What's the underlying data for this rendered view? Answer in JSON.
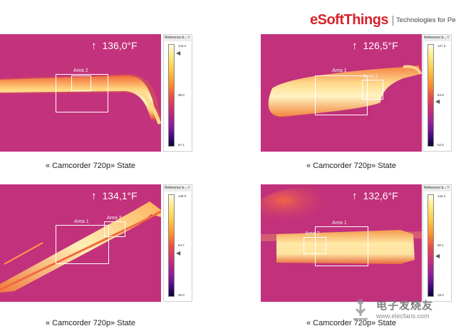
{
  "brand": {
    "name": "eSoftThings",
    "tagline": "Technologies for People",
    "color": "#d8232a"
  },
  "panels": [
    {
      "temperature": "136,0°F",
      "areas": [
        "Area 2"
      ],
      "scale": {
        "title": "Reference b...",
        "max": "142.2",
        "mid": "98.0",
        "min": "57.1"
      },
      "caption": "« Camcorder 720p» State"
    },
    {
      "temperature": "126,5°F",
      "areas": [
        "Area 1",
        "Area 2"
      ],
      "scale": {
        "title": "Reference b...",
        "max": "127.3",
        "mid": "84.9",
        "min": "52.5"
      },
      "caption": "« Camcorder 720p» State"
    },
    {
      "temperature": "134,1°F",
      "areas": [
        "Area 1",
        "Area 2"
      ],
      "scale": {
        "title": "Reference b...",
        "max": "139.0",
        "mid": "84.7",
        "min": "30.0"
      },
      "caption": "« Camcorder 720p» State"
    },
    {
      "temperature": "132,6°F",
      "areas": [
        "Area 1",
        "Area 2"
      ],
      "scale": {
        "title": "Reference b...",
        "max": "142.2",
        "mid": "80.1",
        "min": "18.0"
      },
      "caption": "« Camcorder 720p» State"
    }
  ],
  "watermark": {
    "text": "电子发烧友",
    "url": "www.elecfans.com"
  },
  "icons": [
    "temperature-arrow-icon",
    "scale-pointer-icon",
    "close-icon",
    "watermark-logo-icon"
  ],
  "colors": {
    "thermal_background": "#c3327c",
    "hot_band": "#ffe9a8",
    "box_outline": "#ffffff"
  }
}
